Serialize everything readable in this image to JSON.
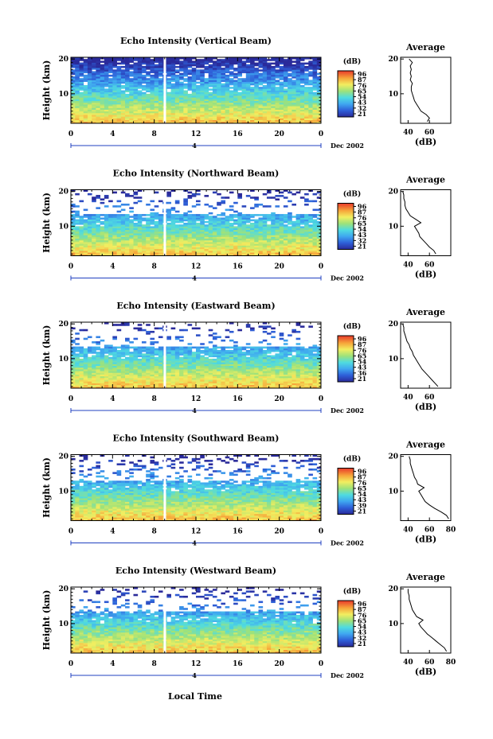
{
  "figure": {
    "xlabel": "Local Time",
    "date_label": "Dec 2002",
    "day_label": "4"
  },
  "chart_data": [
    {
      "type": "heatmap",
      "title": "Echo Intensity (Vertical Beam)",
      "ylabel": "Height (km)",
      "xlabel": "Local Time",
      "x_ticks": [
        "0",
        "4",
        "8",
        "12",
        "16",
        "20",
        "0"
      ],
      "y_ticks": [
        "10",
        "20"
      ],
      "xlim": [
        0,
        24
      ],
      "ylim": [
        1.5,
        20.5
      ],
      "colorbar": {
        "label": "(dB)",
        "ticks": [
          "96",
          "87",
          "76",
          "65",
          "54",
          "43",
          "32",
          "21"
        ]
      },
      "average_profile": {
        "title": "Average",
        "xlabel": "(dB)",
        "x_ticks": [
          "40",
          "60"
        ],
        "y_ticks": [
          "10",
          "20"
        ],
        "height": [
          2,
          3,
          4,
          5,
          6,
          7,
          8,
          9,
          10,
          11,
          12,
          13,
          14,
          15,
          16,
          17,
          18,
          19,
          20
        ],
        "value": [
          58,
          60,
          57,
          52,
          50,
          48,
          46,
          45,
          44,
          43,
          43,
          44,
          42,
          43,
          42,
          43,
          42,
          44,
          41
        ]
      }
    },
    {
      "type": "heatmap",
      "title": "Echo Intensity (Northward Beam)",
      "ylabel": "Height (km)",
      "xlabel": "Local Time",
      "x_ticks": [
        "0",
        "4",
        "8",
        "12",
        "16",
        "20",
        "0"
      ],
      "y_ticks": [
        "10",
        "20"
      ],
      "xlim": [
        0,
        24
      ],
      "ylim": [
        1.5,
        20.5
      ],
      "colorbar": {
        "label": "(dB)",
        "ticks": [
          "96",
          "87",
          "76",
          "65",
          "54",
          "43",
          "32",
          "21"
        ]
      },
      "average_profile": {
        "title": "Average",
        "xlabel": "(dB)",
        "x_ticks": [
          "40",
          "60"
        ],
        "y_ticks": [
          "10",
          "20"
        ],
        "height": [
          2,
          3,
          4,
          5,
          6,
          7,
          8,
          9,
          10,
          11,
          12,
          13,
          14,
          15,
          16,
          17,
          18,
          19,
          20
        ],
        "value": [
          66,
          64,
          60,
          57,
          54,
          51,
          50,
          48,
          46,
          52,
          47,
          42,
          40,
          38,
          37,
          37,
          36,
          36,
          35
        ]
      }
    },
    {
      "type": "heatmap",
      "title": "Echo Intensity (Eastward Beam)",
      "ylabel": "Height (km)",
      "xlabel": "Local Time",
      "x_ticks": [
        "0",
        "4",
        "8",
        "12",
        "16",
        "20",
        "0"
      ],
      "y_ticks": [
        "10",
        "20"
      ],
      "xlim": [
        0,
        24
      ],
      "ylim": [
        1.5,
        20.5
      ],
      "colorbar": {
        "label": "(dB)",
        "ticks": [
          "96",
          "87",
          "76",
          "65",
          "54",
          "43",
          "36",
          "21"
        ]
      },
      "average_profile": {
        "title": "Average",
        "xlabel": "(dB)",
        "x_ticks": [
          "40",
          "60"
        ],
        "y_ticks": [
          "10",
          "20"
        ],
        "height": [
          2,
          3,
          4,
          5,
          6,
          7,
          8,
          9,
          10,
          11,
          12,
          13,
          14,
          15,
          16,
          17,
          18,
          19,
          20
        ],
        "value": [
          68,
          65,
          62,
          59,
          56,
          53,
          51,
          49,
          47,
          45,
          44,
          42,
          41,
          39,
          38,
          37,
          36,
          36,
          35
        ]
      }
    },
    {
      "type": "heatmap",
      "title": "Echo Intensity (Southward Beam)",
      "ylabel": "Height (km)",
      "xlabel": "Local Time",
      "x_ticks": [
        "0",
        "4",
        "8",
        "12",
        "16",
        "20",
        "0"
      ],
      "y_ticks": [
        "10",
        "20"
      ],
      "xlim": [
        0,
        24
      ],
      "ylim": [
        1.5,
        20.5
      ],
      "colorbar": {
        "label": "(dB)",
        "ticks": [
          "96",
          "87",
          "76",
          "65",
          "54",
          "43",
          "39",
          "21"
        ]
      },
      "average_profile": {
        "title": "Average",
        "xlabel": "(dB)",
        "x_ticks": [
          "40",
          "60",
          "80"
        ],
        "y_ticks": [
          "10",
          "20"
        ],
        "height": [
          2,
          3,
          4,
          5,
          6,
          7,
          8,
          9,
          10,
          11,
          12,
          13,
          14,
          15,
          16,
          17,
          18,
          19,
          20
        ],
        "value": [
          78,
          76,
          71,
          65,
          60,
          56,
          54,
          52,
          50,
          55,
          49,
          48,
          46,
          45,
          44,
          43,
          42,
          42,
          41
        ]
      }
    },
    {
      "type": "heatmap",
      "title": "Echo Intensity (Westward Beam)",
      "ylabel": "Height (km)",
      "xlabel": "Local Time",
      "x_ticks": [
        "0",
        "4",
        "8",
        "12",
        "16",
        "20",
        "0"
      ],
      "y_ticks": [
        "10",
        "20"
      ],
      "xlim": [
        0,
        24
      ],
      "ylim": [
        1.5,
        20.5
      ],
      "colorbar": {
        "label": "(dB)",
        "ticks": [
          "96",
          "87",
          "76",
          "65",
          "54",
          "43",
          "32",
          "21"
        ]
      },
      "average_profile": {
        "title": "Average",
        "xlabel": "(dB)",
        "x_ticks": [
          "40",
          "60",
          "80"
        ],
        "y_ticks": [
          "10",
          "20"
        ],
        "height": [
          2,
          3,
          4,
          5,
          6,
          7,
          8,
          9,
          10,
          11,
          12,
          13,
          14,
          15,
          16,
          17,
          18,
          19,
          20
        ],
        "value": [
          76,
          74,
          70,
          66,
          62,
          58,
          55,
          52,
          50,
          54,
          48,
          46,
          44,
          43,
          42,
          41,
          41,
          40,
          40
        ]
      }
    }
  ]
}
